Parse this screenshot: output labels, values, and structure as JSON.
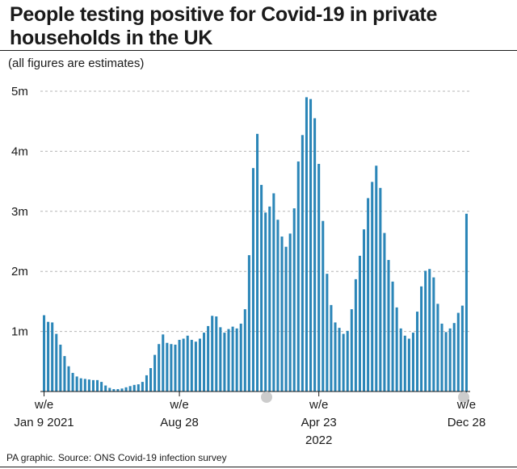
{
  "title": "People testing positive for Covid-19 in private households in the UK",
  "subtitle": "(all figures are estimates)",
  "footer": "PA graphic. Source: ONS Covid-19 infection survey",
  "colors": {
    "bar": "#2b86b8",
    "grid": "#b5b5b5",
    "text": "#1a1a1a",
    "marker": "#cccccc"
  },
  "chart_data": {
    "type": "bar",
    "ylim": [
      0,
      5000000
    ],
    "y_ticks": [
      {
        "value": 1000000,
        "label": "1m"
      },
      {
        "value": 2000000,
        "label": "2m"
      },
      {
        "value": 3000000,
        "label": "3m"
      },
      {
        "value": 4000000,
        "label": "4m"
      },
      {
        "value": 5000000,
        "label": "5m"
      }
    ],
    "x_ticks": [
      {
        "index": 0,
        "lines": [
          "w/e",
          "Jan 9 2021"
        ]
      },
      {
        "index": 33,
        "lines": [
          "w/e",
          "Aug 28"
        ]
      },
      {
        "index": 67,
        "lines": [
          "w/e",
          "Apr 23",
          "2022"
        ]
      },
      {
        "index": 103,
        "lines": [
          "w/e",
          "Dec 28"
        ]
      }
    ],
    "grid": true,
    "values": [
      1270000,
      1160000,
      1150000,
      960000,
      780000,
      590000,
      420000,
      310000,
      250000,
      220000,
      210000,
      200000,
      190000,
      190000,
      160000,
      100000,
      60000,
      40000,
      40000,
      50000,
      70000,
      90000,
      110000,
      120000,
      160000,
      270000,
      390000,
      610000,
      790000,
      950000,
      810000,
      790000,
      780000,
      860000,
      880000,
      930000,
      860000,
      830000,
      880000,
      980000,
      1090000,
      1260000,
      1250000,
      1070000,
      980000,
      1040000,
      1080000,
      1050000,
      1130000,
      1370000,
      2270000,
      3720000,
      4290000,
      3440000,
      2980000,
      3080000,
      3300000,
      2860000,
      2580000,
      2410000,
      2630000,
      3050000,
      3830000,
      4270000,
      4900000,
      4870000,
      4550000,
      3790000,
      2840000,
      1960000,
      1440000,
      1150000,
      1060000,
      960000,
      1010000,
      1370000,
      1870000,
      2260000,
      2700000,
      3220000,
      3490000,
      3760000,
      3390000,
      2640000,
      2190000,
      1830000,
      1400000,
      1050000,
      930000,
      880000,
      980000,
      1330000,
      1750000,
      2010000,
      2040000,
      1900000,
      1460000,
      1130000,
      990000,
      1050000,
      1140000,
      1310000,
      1430000,
      2960000
    ]
  }
}
